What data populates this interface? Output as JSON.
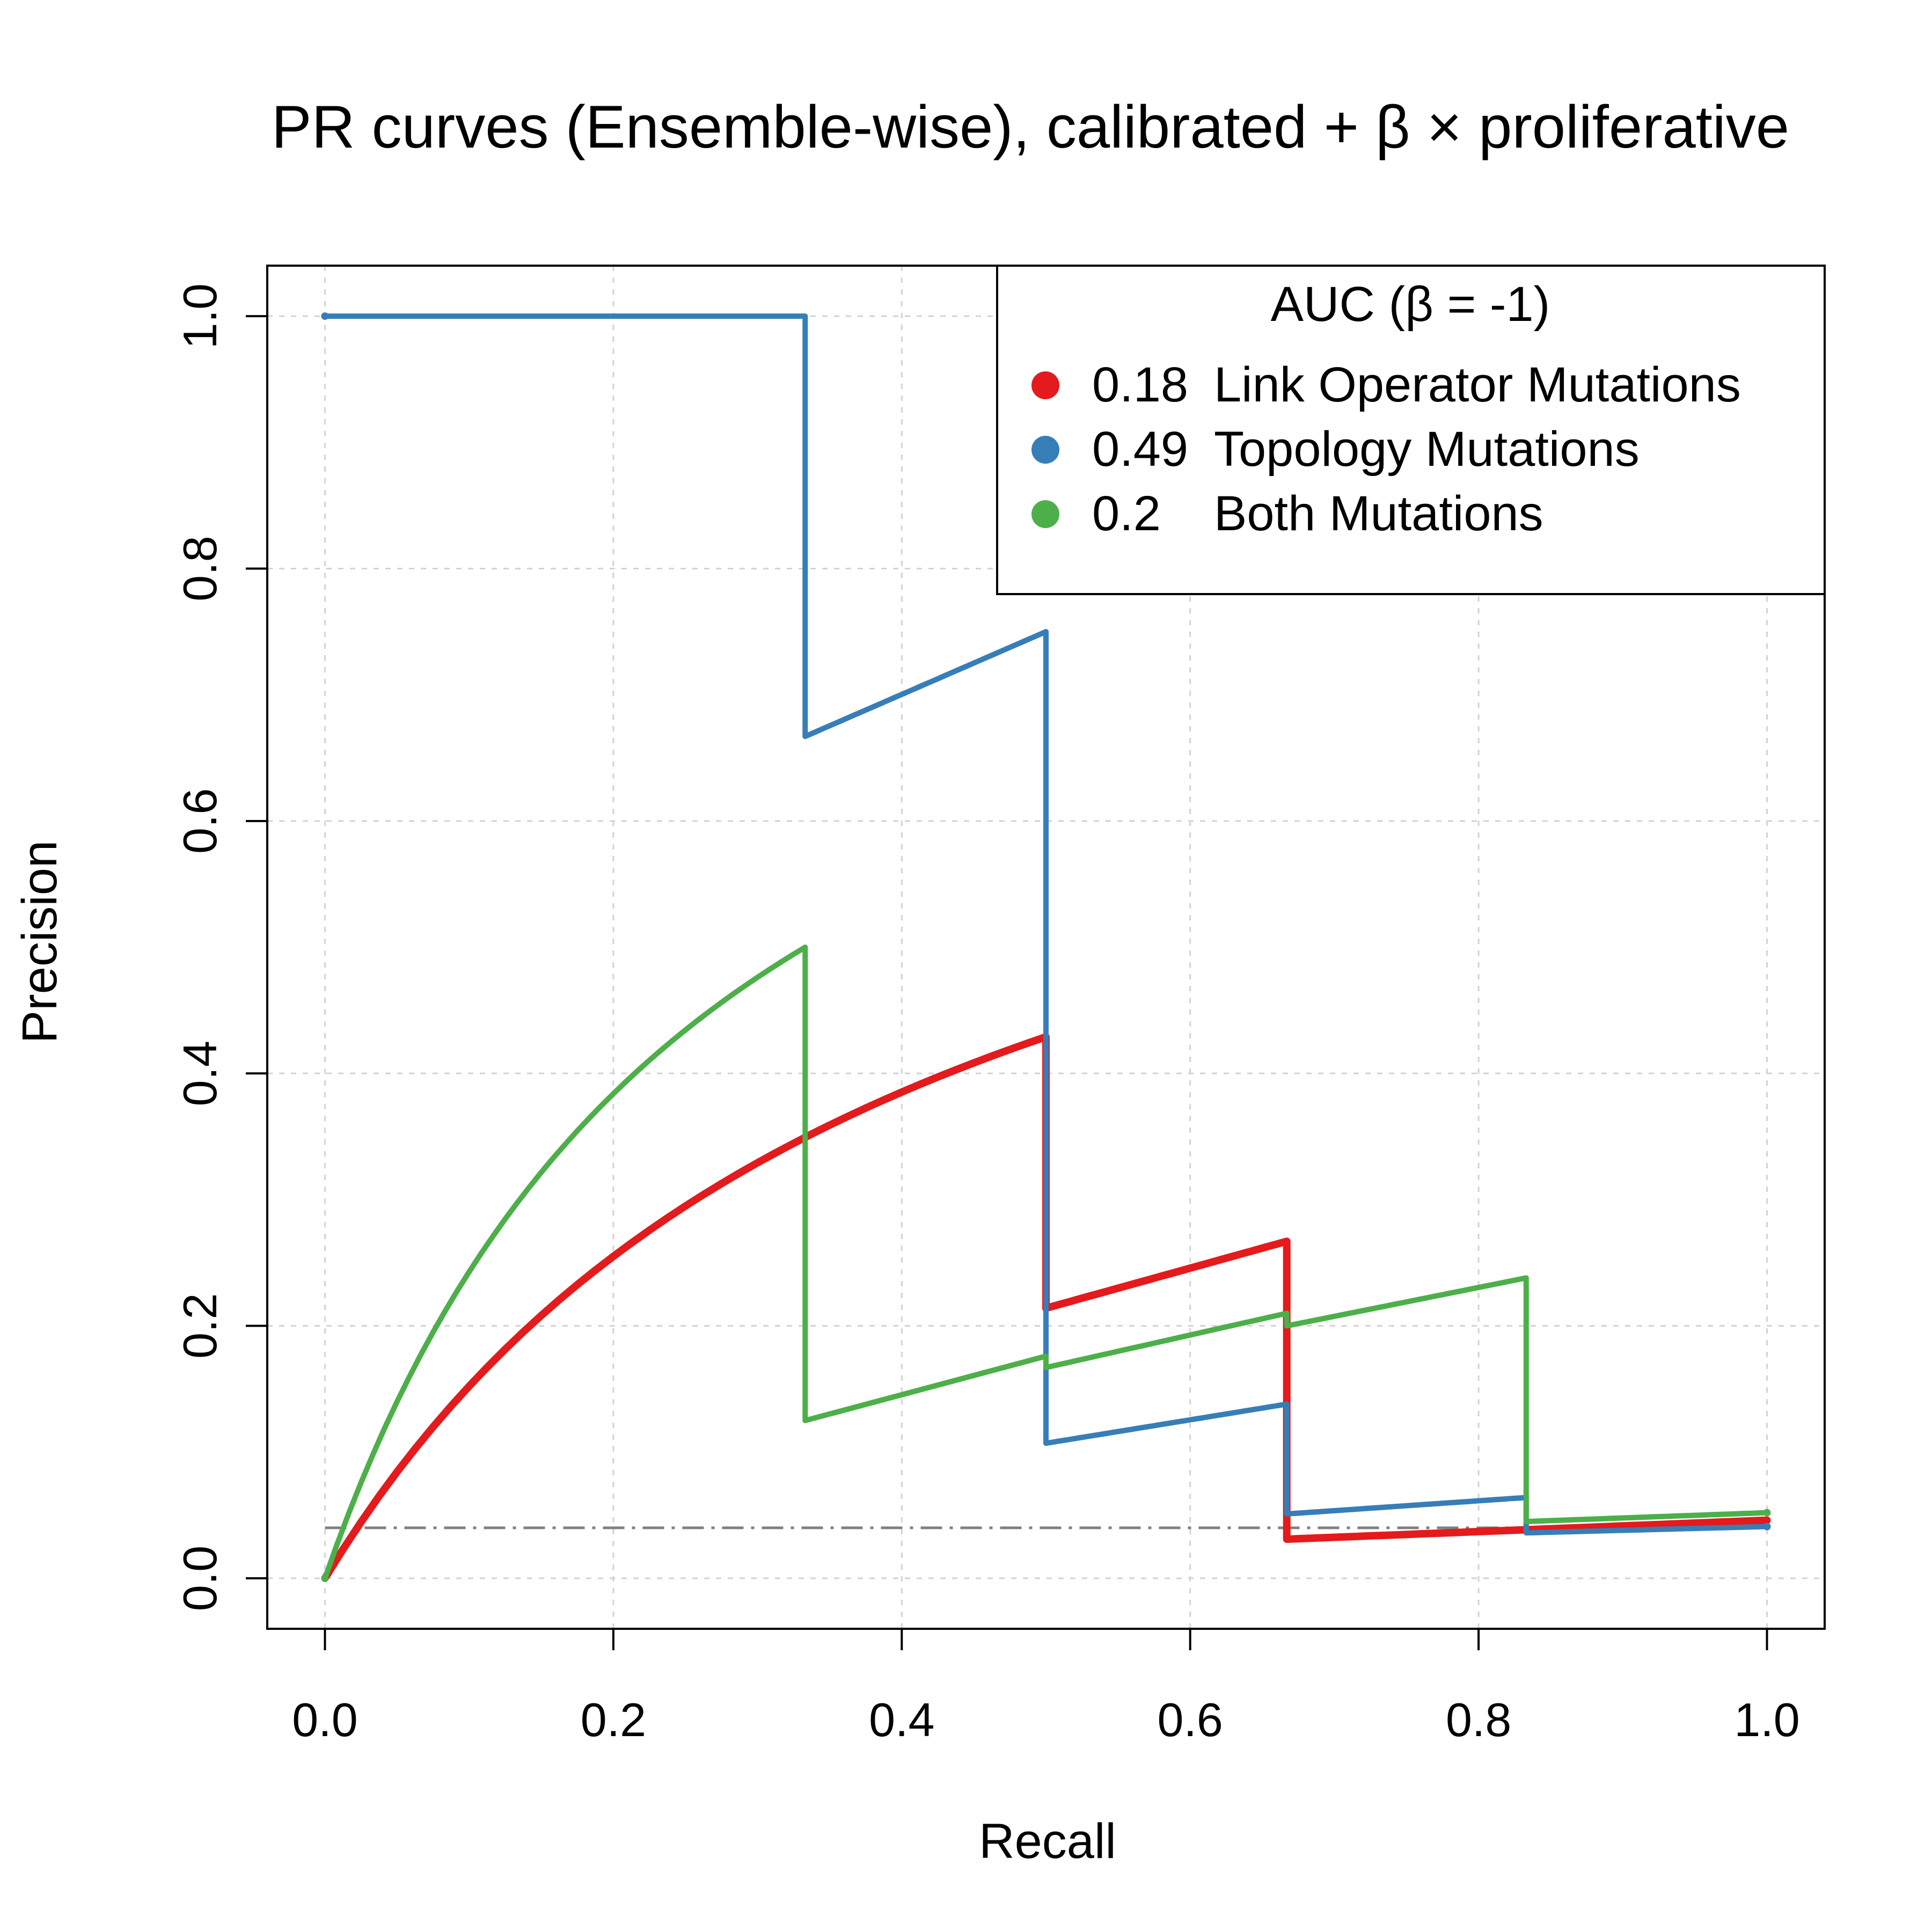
{
  "chart_data": {
    "type": "line",
    "title": "PR curves (Ensemble-wise), calibrated + β × proliferative",
    "xlabel": "Recall",
    "ylabel": "Precision",
    "xlim": [
      -0.04,
      1.04
    ],
    "ylim": [
      -0.04,
      1.04
    ],
    "x_ticks": [
      "0.0",
      "0.2",
      "0.4",
      "0.6",
      "0.8",
      "1.0"
    ],
    "y_ticks": [
      "0.0",
      "0.2",
      "0.4",
      "0.6",
      "0.8",
      "1.0"
    ],
    "grid": true,
    "legend": {
      "title": "AUC (β = -1)",
      "position": "top-right",
      "entries": [
        {
          "auc": "0.18",
          "label": "Link Operator Mutations",
          "color": "#e41a1c"
        },
        {
          "auc": "0.49",
          "label": "Topology Mutations",
          "color": "#377eb8"
        },
        {
          "auc": "0.2",
          "label": "Both Mutations",
          "color": "#4daf4a"
        }
      ]
    },
    "baseline": {
      "y": 0.04,
      "style": "dash-dot",
      "color": "#808080"
    },
    "series": [
      {
        "name": "Link Operator Mutations",
        "color": "#e41a1c",
        "points": [
          [
            0,
            0
          ],
          [
            0.5,
            0.429
          ],
          [
            0.5,
            0.214
          ],
          [
            0.667,
            0.267
          ],
          [
            0.667,
            0.031
          ],
          [
            1.0,
            0.046
          ]
        ]
      },
      {
        "name": "Topology Mutations",
        "color": "#377eb8",
        "points": [
          [
            0,
            1.0
          ],
          [
            0.333,
            1.0
          ],
          [
            0.333,
            0.667
          ],
          [
            0.5,
            0.75
          ],
          [
            0.5,
            0.107
          ],
          [
            0.667,
            0.138
          ],
          [
            0.667,
            0.051
          ],
          [
            0.833,
            0.064
          ],
          [
            0.833,
            0.036
          ],
          [
            1.0,
            0.041
          ]
        ]
      },
      {
        "name": "Both Mutations",
        "color": "#4daf4a",
        "points": [
          [
            0,
            0
          ],
          [
            0.333,
            0.5
          ],
          [
            0.333,
            0.125
          ],
          [
            0.5,
            0.176
          ],
          [
            0.5,
            0.167
          ],
          [
            0.667,
            0.21
          ],
          [
            0.667,
            0.2
          ],
          [
            0.833,
            0.238
          ],
          [
            0.833,
            0.045
          ],
          [
            1.0,
            0.052
          ]
        ]
      }
    ]
  }
}
